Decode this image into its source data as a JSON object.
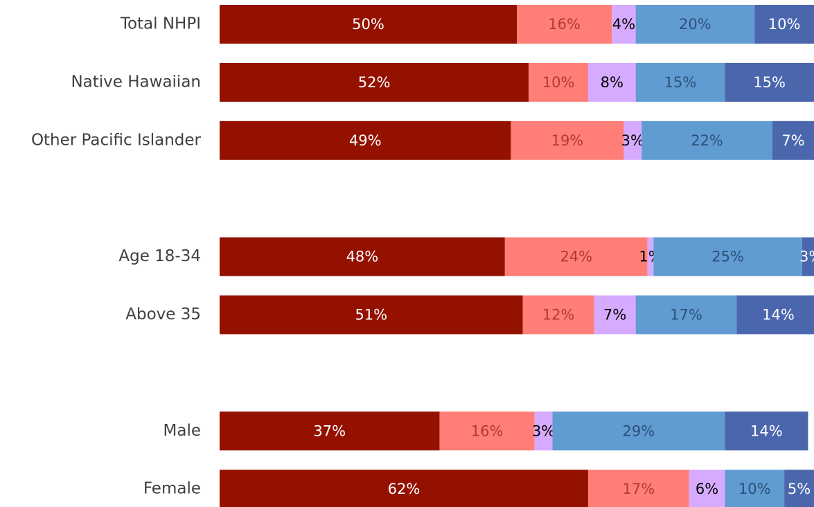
{
  "chart_data": {
    "type": "stacked-barh",
    "categories": [
      "Total NHPI",
      "Native Hawaiian",
      "Other Pacific Islander",
      null,
      "Age 18-34",
      "Above 35",
      null,
      "Male",
      "Female"
    ],
    "xlim": [
      0,
      100
    ],
    "series": [
      {
        "color": "#941100",
        "label_color": "#ffffff",
        "values": [
          50,
          52,
          49,
          null,
          48,
          51,
          null,
          37,
          62
        ],
        "value_labels": [
          "50%",
          "52%",
          "49%",
          null,
          "48%",
          "51%",
          null,
          "37%",
          "62%"
        ]
      },
      {
        "color": "#ff7f78",
        "label_color": "#b03a2e",
        "values": [
          16,
          10,
          19,
          null,
          24,
          12,
          null,
          16,
          17
        ],
        "value_labels": [
          "16%",
          "10%",
          "19%",
          null,
          "24%",
          "12%",
          null,
          "16%",
          "17%"
        ]
      },
      {
        "color": "#d6abff",
        "label_color": "#000000",
        "values": [
          4,
          8,
          3,
          null,
          1,
          7,
          null,
          3,
          6
        ],
        "value_labels": [
          "4%",
          "8%",
          "3%",
          null,
          "1%",
          "7%",
          null,
          "3%",
          "6%"
        ]
      },
      {
        "color": "#609cd2",
        "label_color": "#2e4f7a",
        "values": [
          20,
          15,
          22,
          null,
          25,
          17,
          null,
          29,
          10
        ],
        "value_labels": [
          "20%",
          "15%",
          "22%",
          null,
          "25%",
          "17%",
          null,
          "29%",
          "10%"
        ]
      },
      {
        "color": "#4a66ad",
        "label_color": "#ffffff",
        "values": [
          10,
          15,
          7,
          null,
          3,
          14,
          null,
          14,
          5
        ],
        "value_labels": [
          "10%",
          "15%",
          "7%",
          null,
          "3%",
          "14%",
          null,
          "14%",
          "5%"
        ]
      }
    ]
  }
}
